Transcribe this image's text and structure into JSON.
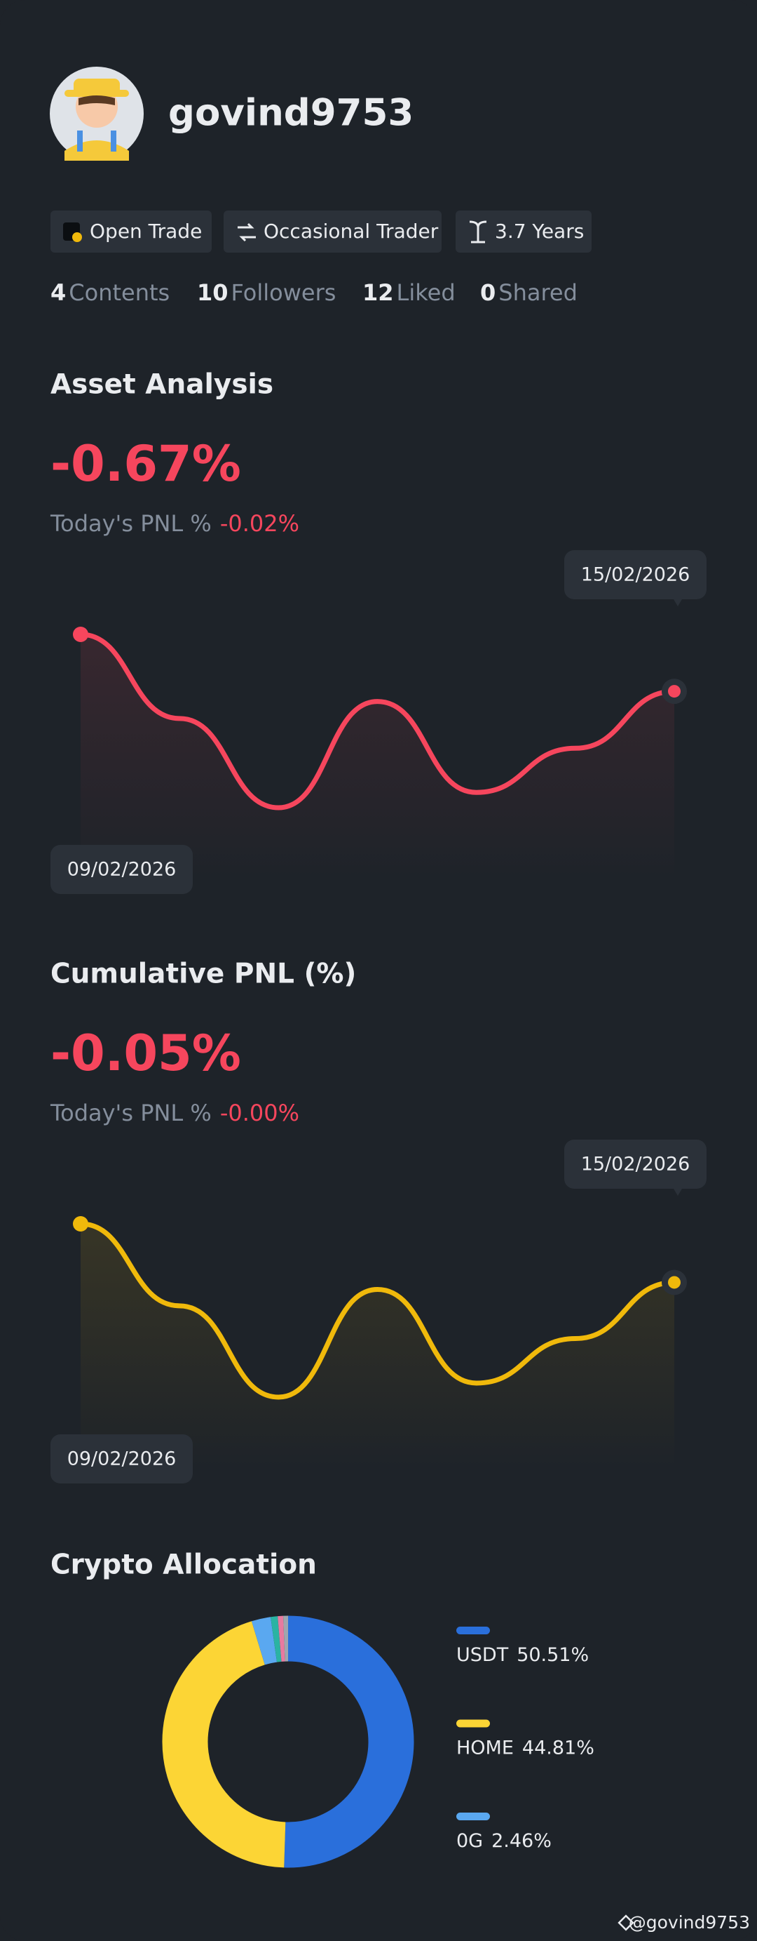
{
  "profile": {
    "username": "govind9753",
    "tags": [
      "Open Trade",
      "Occasional Trader",
      "3.7 Years"
    ],
    "stats": [
      {
        "value": "4",
        "label": "Contents"
      },
      {
        "value": "10",
        "label": "Followers"
      },
      {
        "value": "12",
        "label": "Liked"
      },
      {
        "value": "0",
        "label": "Shared"
      }
    ]
  },
  "chart_data": [
    {
      "type": "line",
      "title": "Asset Analysis",
      "headline": "-0.67%",
      "subtitle": "Today's PNL %",
      "subtitle_value": "-0.02%",
      "categories": [
        "09/02/2026",
        null,
        null,
        null,
        null,
        null,
        "15/02/2026"
      ],
      "series": [
        {
          "color": "#f6465d",
          "values": [
            0,
            -0.99,
            -2.04,
            -0.79,
            -1.86,
            -1.34,
            -0.67
          ]
        }
      ]
    },
    {
      "type": "line",
      "title": "Cumulative PNL (%)",
      "headline": "-0.05%",
      "subtitle": "Today's PNL %",
      "subtitle_value": "-0.00%",
      "categories": [
        "09/02/2026",
        null,
        null,
        null,
        null,
        null,
        "15/02/2026"
      ],
      "series": [
        {
          "color": "#f0b90b",
          "values": [
            0,
            -0.07,
            -0.148,
            -0.056,
            -0.136,
            -0.098,
            -0.05
          ]
        }
      ]
    },
    {
      "type": "pie",
      "title": "Crypto Allocation",
      "categories": [
        "USDT",
        "HOME",
        "0G",
        null,
        null,
        null
      ],
      "values": [
        50.51,
        44.81,
        2.46,
        0.9,
        0.7,
        0.62
      ],
      "value_labels": [
        "50.51%",
        "44.81%",
        "2.46%",
        null,
        null,
        null
      ],
      "colors": [
        "#2a6fdb",
        "#fcd535",
        "#5aa8f0",
        "#2bb3a3",
        "#e87aa0",
        "#a0a6ae"
      ]
    }
  ],
  "footer": "@govind9753"
}
